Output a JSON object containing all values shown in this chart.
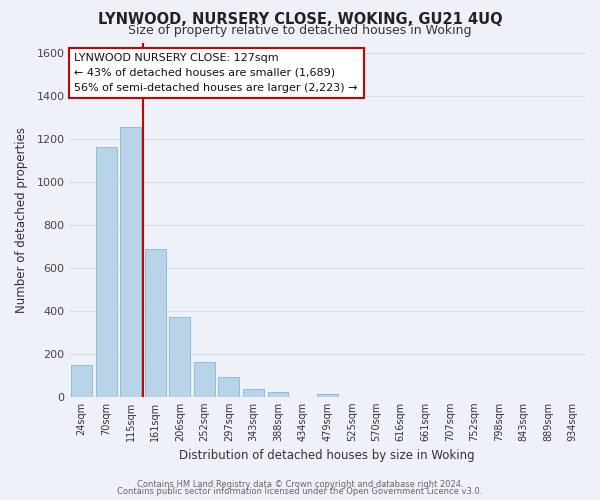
{
  "title": "LYNWOOD, NURSERY CLOSE, WOKING, GU21 4UQ",
  "subtitle": "Size of property relative to detached houses in Woking",
  "xlabel": "Distribution of detached houses by size in Woking",
  "ylabel": "Number of detached properties",
  "bar_labels": [
    "24sqm",
    "70sqm",
    "115sqm",
    "161sqm",
    "206sqm",
    "252sqm",
    "297sqm",
    "343sqm",
    "388sqm",
    "434sqm",
    "479sqm",
    "525sqm",
    "570sqm",
    "616sqm",
    "661sqm",
    "707sqm",
    "752sqm",
    "798sqm",
    "843sqm",
    "889sqm",
    "934sqm"
  ],
  "bar_values": [
    148,
    1165,
    1255,
    690,
    370,
    160,
    91,
    37,
    22,
    0,
    15,
    0,
    0,
    0,
    0,
    0,
    0,
    0,
    0,
    0,
    0
  ],
  "bar_color": "#b8d4e8",
  "bar_edge_color": "#7aadd0",
  "vline_color": "#cc0000",
  "ylim": [
    0,
    1650
  ],
  "yticks": [
    0,
    200,
    400,
    600,
    800,
    1000,
    1200,
    1400,
    1600
  ],
  "annotation_title": "LYNWOOD NURSERY CLOSE: 127sqm",
  "annotation_line1": "← 43% of detached houses are smaller (1,689)",
  "annotation_line2": "56% of semi-detached houses are larger (2,223) →",
  "footer1": "Contains HM Land Registry data © Crown copyright and database right 2024.",
  "footer2": "Contains public sector information licensed under the Open Government Licence v3.0.",
  "background_color": "#eef1f8",
  "grid_color": "#d8dde8",
  "annotation_box_color": "#ffffff",
  "annotation_box_edge": "#cc0000"
}
